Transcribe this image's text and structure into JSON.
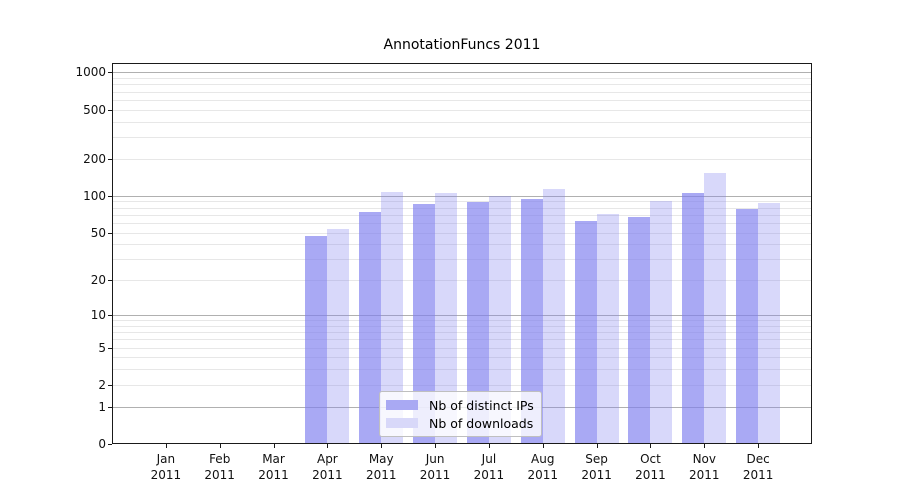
{
  "chart_data": {
    "type": "bar",
    "title": "AnnotationFuncs 2011",
    "categories": [
      "Jan",
      "Feb",
      "Mar",
      "Apr",
      "May",
      "Jun",
      "Jul",
      "Aug",
      "Sep",
      "Oct",
      "Nov",
      "Dec"
    ],
    "year_label": "2011",
    "series": [
      {
        "name": "Nb of distinct IPs",
        "color": "#a9a9f3",
        "values": [
          0,
          0,
          0,
          47,
          73,
          85,
          89,
          94,
          62,
          67,
          105,
          78
        ]
      },
      {
        "name": "Nb of downloads",
        "color": "#d8d8f9",
        "values": [
          0,
          0,
          0,
          53,
          108,
          105,
          99,
          114,
          71,
          90,
          152,
          87
        ]
      }
    ],
    "yscale": "log1p",
    "yticks": [
      0,
      1,
      2,
      5,
      10,
      20,
      50,
      100,
      200,
      500,
      1000
    ],
    "ylim": [
      0,
      1190
    ],
    "legend_position": "bottom-center",
    "grid": {
      "major_values": [
        1,
        10,
        100,
        1000
      ],
      "minor_values": [
        2,
        3,
        4,
        5,
        6,
        7,
        8,
        9,
        20,
        30,
        40,
        50,
        60,
        70,
        80,
        90,
        200,
        300,
        400,
        500,
        600,
        700,
        800,
        900
      ],
      "major_color": "#b0b0b0",
      "minor_color": "#e7e7e7"
    },
    "colors": {
      "bar_base": "#7f7fee",
      "series_alphas": [
        0.67,
        0.3
      ],
      "spine": "#1a1a1a",
      "text": "#111111"
    }
  }
}
